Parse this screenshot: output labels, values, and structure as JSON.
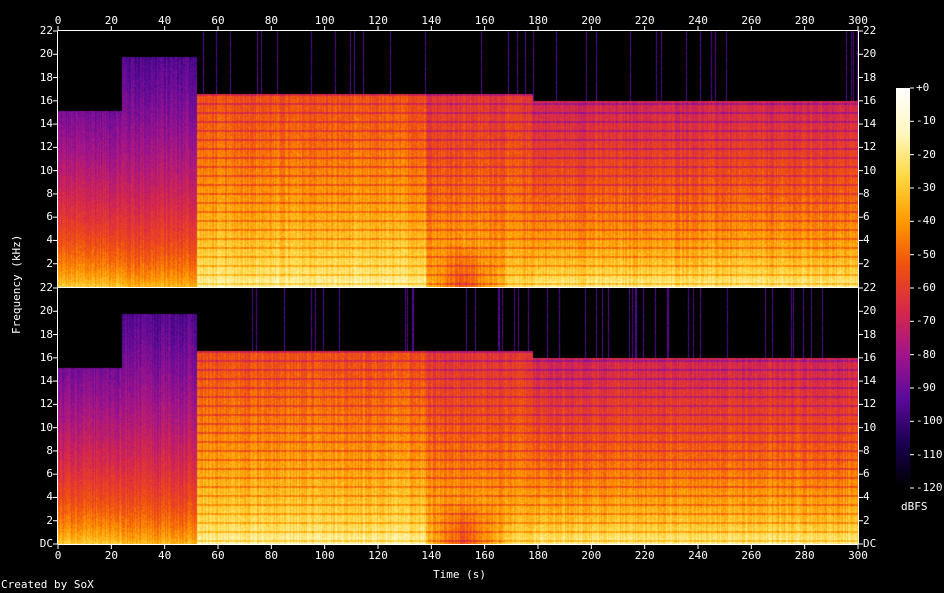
{
  "chart_data": {
    "type": "heatmap",
    "xlabel": "Time (s)",
    "ylabel": "Frequency (kHz)",
    "xlim": [
      0,
      300
    ],
    "ylim": [
      0,
      22
    ],
    "x_ticks": [
      0,
      20,
      40,
      60,
      80,
      100,
      120,
      140,
      160,
      180,
      200,
      220,
      240,
      260,
      280,
      300
    ],
    "y_ticks_upper": [
      "22",
      "20",
      "18",
      "16",
      "14",
      "12",
      "10",
      "8",
      "6",
      "4",
      "2"
    ],
    "y_ticks_lower": [
      "22",
      "20",
      "18",
      "16",
      "14",
      "12",
      "10",
      "8",
      "6",
      "4",
      "2",
      "DC"
    ],
    "colorbar": {
      "label": "dBFS",
      "ticks": [
        "+0",
        "-10",
        "-20",
        "-30",
        "-40",
        "-50",
        "-60",
        "-70",
        "-80",
        "-90",
        "-100",
        "-110",
        "-120"
      ],
      "range": [
        -120,
        0
      ],
      "colormap": [
        "#000000",
        "#1a0050",
        "#5a0a9a",
        "#a0148c",
        "#d8284a",
        "#f05010",
        "#ff9a00",
        "#ffd840",
        "#fff8c0",
        "#ffffff"
      ]
    },
    "channels": 2,
    "segments": [
      {
        "t_start": 0,
        "t_end": 24,
        "cutoff_khz": 15.2,
        "high_db": -88,
        "low_db": -25
      },
      {
        "t_start": 24,
        "t_end": 52,
        "cutoff_khz": 19.8,
        "high_db": -95,
        "low_db": -30
      },
      {
        "t_start": 52,
        "t_end": 138,
        "cutoff_khz": 16.6,
        "high_db": -55,
        "low_db": -12
      },
      {
        "t_start": 138,
        "t_end": 178,
        "cutoff_khz": 16.6,
        "high_db": -62,
        "low_db": -20
      },
      {
        "t_start": 178,
        "t_end": 300,
        "cutoff_khz": 16.0,
        "high_db": -68,
        "low_db": -14
      }
    ],
    "footer": "Created by SoX"
  }
}
